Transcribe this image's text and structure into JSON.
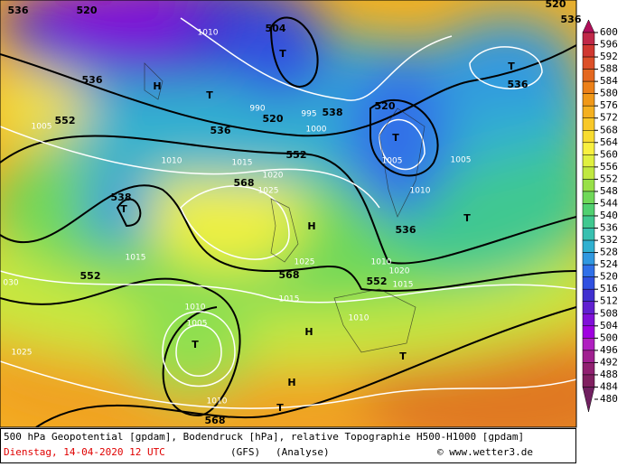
{
  "map": {
    "labels": [
      "520",
      "536",
      "552",
      "538",
      "536",
      "520",
      "552",
      "568",
      "538",
      "552",
      "568",
      "552",
      "536",
      "568",
      "536",
      "520",
      "504",
      "536",
      "520",
      "536",
      "T",
      "T",
      "T",
      "T",
      "T",
      "H",
      "H",
      "H",
      "T",
      "T",
      "T",
      "H",
      "T",
      "1005",
      "1010",
      "1015",
      "1020",
      "1025",
      "1010",
      "1005",
      "1015",
      "1010",
      "1015",
      "1010",
      "1000",
      "995",
      "990",
      "1005",
      "1010",
      "1025",
      "1010",
      "1015",
      "1025",
      "1020",
      "1010",
      "1005",
      "030"
    ],
    "label_colors": [
      "black",
      "black",
      "black",
      "black",
      "black",
      "black",
      "black",
      "black",
      "black",
      "black",
      "black",
      "black",
      "black",
      "black",
      "black",
      "black",
      "black",
      "black",
      "black",
      "black",
      "black",
      "black",
      "black",
      "black",
      "black",
      "black",
      "black",
      "black",
      "black",
      "black",
      "black",
      "black",
      "black",
      "white",
      "white",
      "white",
      "white",
      "white",
      "white",
      "white",
      "white",
      "white",
      "white",
      "white",
      "white",
      "white",
      "white",
      "white",
      "white",
      "white",
      "white",
      "white",
      "white",
      "white",
      "white",
      "white",
      "white"
    ]
  },
  "colorbar": {
    "labels": [
      600,
      596,
      592,
      588,
      584,
      580,
      576,
      572,
      568,
      564,
      560,
      556,
      552,
      548,
      544,
      540,
      536,
      532,
      528,
      524,
      520,
      516,
      512,
      508,
      504,
      500,
      496,
      492,
      488,
      484,
      480
    ],
    "colors": [
      "#b0105a",
      "#c02848",
      "#d03830",
      "#dc5028",
      "#e46820",
      "#ec8018",
      "#f09818",
      "#f4b020",
      "#f8c828",
      "#f8dc30",
      "#f8f040",
      "#e0f040",
      "#c0e840",
      "#98e048",
      "#70d858",
      "#50d070",
      "#40c890",
      "#38c0b0",
      "#30b0d0",
      "#3098e0",
      "#3070e8",
      "#3050e0",
      "#4030d0",
      "#6020d0",
      "#8010d8",
      "#a000e0",
      "#b020c0",
      "#a02090",
      "#902070",
      "#802060",
      "#702060"
    ]
  },
  "caption": {
    "line1": "500 hPa Geopotential [gpdam], Bodendruck [hPa], relative Topographie H500-H1000 [gpdam]",
    "date": "Dienstag, 14-04-2020  12 UTC",
    "model": "(GFS)",
    "run": "(Analyse)",
    "credit": "© www.wetter3.de"
  }
}
